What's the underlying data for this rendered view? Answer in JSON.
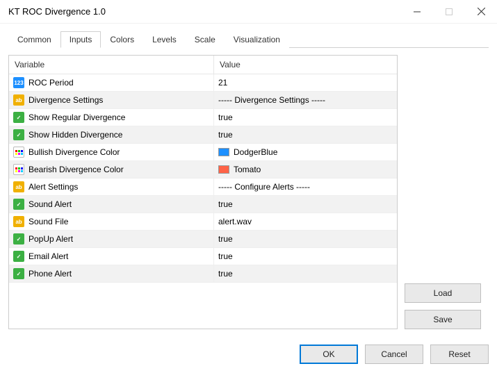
{
  "window": {
    "title": "KT ROC Divergence 1.0"
  },
  "tabs": {
    "items": [
      {
        "label": "Common"
      },
      {
        "label": "Inputs"
      },
      {
        "label": "Colors"
      },
      {
        "label": "Levels"
      },
      {
        "label": "Scale"
      },
      {
        "label": "Visualization"
      }
    ],
    "active_index": 1
  },
  "columns": {
    "variable": "Variable",
    "value": "Value"
  },
  "rows": [
    {
      "icon": "num",
      "name": "ROC Period",
      "value": "21"
    },
    {
      "icon": "str",
      "name": "Divergence Settings",
      "value": "----- Divergence Settings -----"
    },
    {
      "icon": "bool",
      "name": "Show Regular Divergence",
      "value": "true"
    },
    {
      "icon": "bool",
      "name": "Show Hidden Divergence",
      "value": "true"
    },
    {
      "icon": "col",
      "name": "Bullish Divergence Color",
      "value": "DodgerBlue",
      "swatch": "#1e90ff"
    },
    {
      "icon": "col",
      "name": "Bearish Divergence Color",
      "value": "Tomato",
      "swatch": "#ff6347"
    },
    {
      "icon": "str",
      "name": "Alert Settings",
      "value": "----- Configure Alerts -----"
    },
    {
      "icon": "bool",
      "name": "Sound Alert",
      "value": "true"
    },
    {
      "icon": "str",
      "name": "Sound File",
      "value": "alert.wav"
    },
    {
      "icon": "bool",
      "name": "PopUp Alert",
      "value": "true"
    },
    {
      "icon": "bool",
      "name": "Email Alert",
      "value": "true"
    },
    {
      "icon": "bool",
      "name": "Phone Alert",
      "value": "true"
    }
  ],
  "buttons": {
    "load": "Load",
    "save": "Save",
    "ok": "OK",
    "cancel": "Cancel",
    "reset": "Reset"
  },
  "colors": {
    "accent": "#0078d7",
    "row_alt": "#f2f2f2",
    "border": "#cccccc",
    "btn_bg": "#e9e9e9"
  },
  "icon_glyphs": {
    "num": "123",
    "str": "ab",
    "bool": "✓"
  }
}
